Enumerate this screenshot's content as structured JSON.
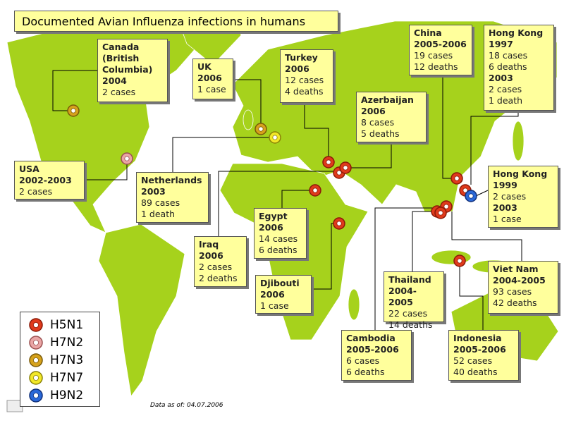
{
  "title": "Documented Avian Influenza infections in humans",
  "callouts": [
    {
      "lines": [
        "Canada",
        "(British",
        "Columbia)",
        "2004",
        "2 cases"
      ]
    },
    {
      "lines": [
        "UK",
        "2006",
        "1 case"
      ]
    },
    {
      "lines": [
        "Turkey",
        "2006",
        "12 cases",
        "4 deaths"
      ]
    },
    {
      "lines": [
        "China",
        "2005-2006",
        "19 cases",
        "12 deaths"
      ]
    },
    {
      "lines": [
        "Hong Kong",
        "1997",
        "18 cases",
        "6 deaths",
        "2003",
        "2 cases",
        "1 death"
      ]
    },
    {
      "lines": [
        "Azerbaijan",
        "2006",
        "8 cases",
        "5 deaths"
      ]
    },
    {
      "lines": [
        "USA",
        "2002-2003",
        "2 cases"
      ]
    },
    {
      "lines": [
        "Netherlands",
        "2003",
        "89 cases",
        "1 death"
      ]
    },
    {
      "lines": [
        "Hong Kong",
        "1999",
        "2 cases",
        "2003",
        "1 case"
      ]
    },
    {
      "lines": [
        "Egypt",
        "2006",
        "14 cases",
        "6 deaths"
      ]
    },
    {
      "lines": [
        "Iraq",
        "2006",
        "2 cases",
        "2 deaths"
      ]
    },
    {
      "lines": [
        "Djibouti",
        "2006",
        "1 case"
      ]
    },
    {
      "lines": [
        "Thailand",
        "2004-2005",
        "22 cases",
        "14 deaths"
      ]
    },
    {
      "lines": [
        "Viet Nam",
        "2004-2005",
        "93 cases",
        "42 deaths"
      ]
    },
    {
      "lines": [
        "Cambodia",
        "2005-2006",
        "6 cases",
        "6 deaths"
      ]
    },
    {
      "lines": [
        "Indonesia",
        "2005-2006",
        "52 cases",
        "40 deaths"
      ]
    }
  ],
  "legend": [
    "H5N1",
    "H7N2",
    "H7N3",
    "H7N7",
    "H9N2"
  ],
  "footnote": "Data as of: 04.07.2006"
}
